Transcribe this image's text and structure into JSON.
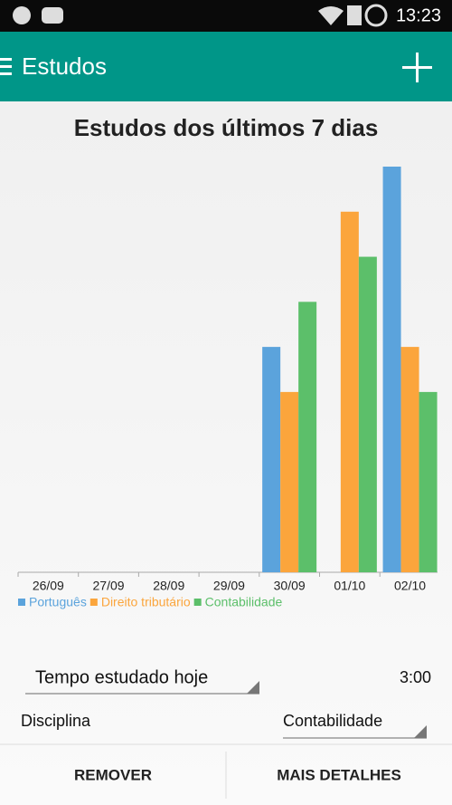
{
  "status_bar": {
    "time": "13:23"
  },
  "toolbar": {
    "title": "Estudos"
  },
  "chart_data": {
    "type": "bar",
    "title": "Estudos dos últimos 7 dias",
    "categories": [
      "26/09",
      "27/09",
      "28/09",
      "29/09",
      "30/09",
      "01/10",
      "02/10"
    ],
    "series": [
      {
        "name": "Português",
        "color": "#5ba3dc",
        "values": [
          0,
          0,
          0,
          0,
          5,
          0,
          9
        ]
      },
      {
        "name": "Direito tributário",
        "color": "#fba53c",
        "values": [
          0,
          0,
          0,
          0,
          4,
          8,
          5
        ]
      },
      {
        "name": "Contabilidade",
        "color": "#5cbf6a",
        "values": [
          0,
          0,
          0,
          0,
          6,
          7,
          4
        ]
      }
    ]
  },
  "form": {
    "time_label": "Tempo estudado hoje",
    "time_value": "3:00",
    "discipline_label": "Disciplina",
    "discipline_value": "Contabilidade"
  },
  "buttons": [
    "REMOVER",
    "MAIS DETALHES"
  ]
}
